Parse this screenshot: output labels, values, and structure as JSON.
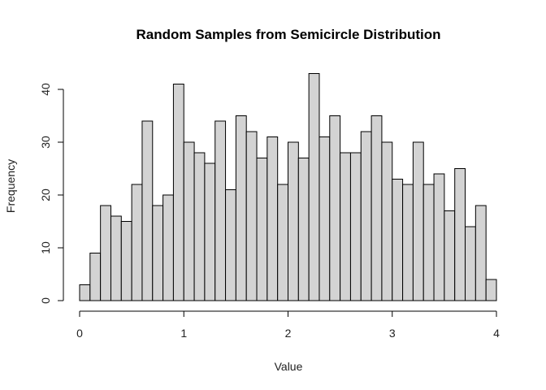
{
  "chart_data": {
    "type": "bar",
    "title": "Random Samples from Semicircle Distribution",
    "xlabel": "Value",
    "ylabel": "Frequency",
    "xlim": [
      0,
      4
    ],
    "ylim": [
      0,
      40
    ],
    "x_ticks": [
      0,
      1,
      2,
      3,
      4
    ],
    "y_ticks": [
      0,
      10,
      20,
      30,
      40
    ],
    "bin_start": 0,
    "bin_width": 0.1,
    "values": [
      3,
      9,
      18,
      16,
      15,
      22,
      34,
      18,
      20,
      41,
      30,
      28,
      26,
      34,
      21,
      35,
      32,
      27,
      31,
      22,
      30,
      27,
      43,
      31,
      35,
      28,
      28,
      32,
      35,
      30,
      23,
      22,
      30,
      22,
      24,
      17,
      25,
      14,
      18,
      4
    ],
    "bar_color": "#d3d3d3",
    "edge_color": "#000000",
    "grid": false,
    "legend": "none"
  }
}
